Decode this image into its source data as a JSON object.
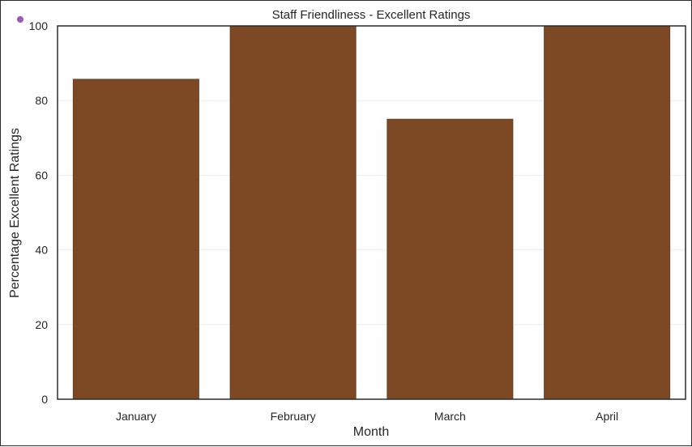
{
  "chart_data": {
    "type": "bar",
    "title": "Staff Friendliness - Excellent Ratings",
    "xlabel": "Month",
    "ylabel": "Percentage Excellent Ratings",
    "categories": [
      "January",
      "February",
      "March",
      "April"
    ],
    "values": [
      85.7,
      100,
      75,
      100
    ],
    "ylim": [
      0,
      100
    ],
    "yticks": [
      0,
      20,
      40,
      60,
      80,
      100
    ],
    "grid": true,
    "bar_color": "#7d4924",
    "grid_color": "#ebebeb",
    "legend": "none"
  },
  "decoration": {
    "dot_color": "#9b59b6"
  }
}
